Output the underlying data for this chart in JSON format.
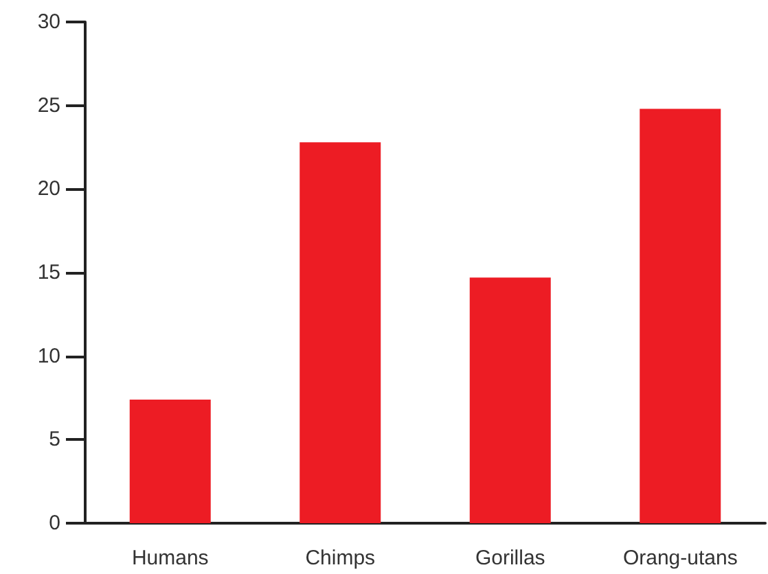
{
  "chart_data": {
    "type": "bar",
    "categories": [
      "Humans",
      "Chimps",
      "Gorillas",
      "Orang-utans"
    ],
    "values": [
      7.4,
      22.8,
      14.7,
      24.8
    ],
    "color": "#ed1c24",
    "ylim": [
      0,
      30
    ],
    "yticks": [
      0,
      5,
      10,
      15,
      20,
      25,
      30
    ],
    "grid": false
  }
}
